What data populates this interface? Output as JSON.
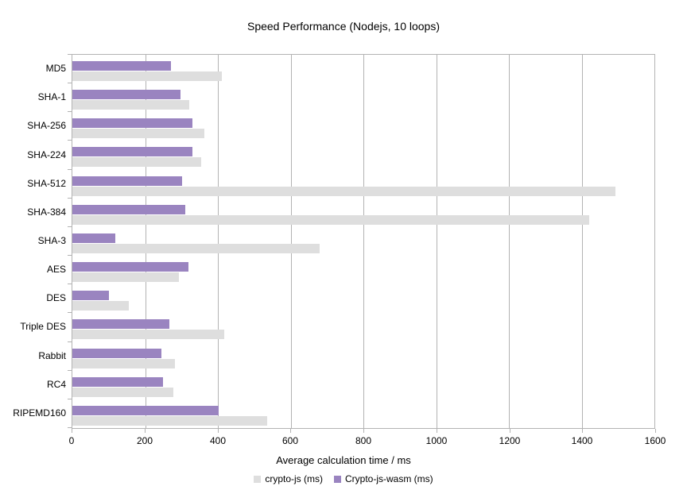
{
  "chart_data": {
    "type": "bar",
    "orientation": "horizontal",
    "title": "Speed Performance (Nodejs, 10 loops)",
    "xlabel": "Average calculation time / ms",
    "ylabel": "",
    "xlim": [
      0,
      1600
    ],
    "x_ticks": [
      "0",
      "200",
      "400",
      "600",
      "800",
      "1000",
      "1200",
      "1400",
      "1600"
    ],
    "grid": "vertical-on",
    "legend_position": "bottom",
    "categories": [
      "MD5",
      "SHA-1",
      "SHA-256",
      "SHA-224",
      "SHA-512",
      "SHA-384",
      "SHA-3",
      "AES",
      "DES",
      "Triple DES",
      "Rabbit",
      "RC4",
      "RIPEMD160"
    ],
    "series": [
      {
        "name": "crypto-js (ms)",
        "color": "#dedede",
        "values": [
          412,
          322,
          363,
          354,
          1492,
          1421,
          680,
          293,
          156,
          418,
          281,
          277,
          535
        ]
      },
      {
        "name": "Crypto-js-wasm (ms)",
        "color": "#9a84c0",
        "values": [
          271,
          297,
          329,
          329,
          301,
          310,
          119,
          320,
          101,
          267,
          244,
          250,
          402
        ]
      }
    ],
    "colors": {
      "axis": "#b3b3b3",
      "text": "#000000",
      "background": "#ffffff"
    }
  }
}
